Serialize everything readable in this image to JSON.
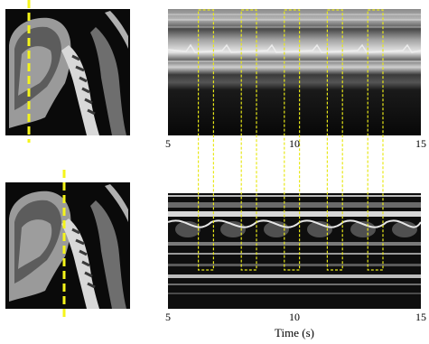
{
  "figure": {
    "x_ticks": [
      "5",
      "10",
      "15"
    ],
    "x_axis_title": "Time (s)"
  },
  "colors": {
    "cut_line": "#f5f51a",
    "highlight": "#e8e81a",
    "image_bg": "#0a0a0a"
  },
  "highlight_windows_seconds": [
    [
      6.2,
      6.8
    ],
    [
      7.9,
      8.5
    ],
    [
      9.6,
      10.2
    ],
    [
      11.3,
      11.9
    ],
    [
      12.9,
      13.5
    ]
  ]
}
